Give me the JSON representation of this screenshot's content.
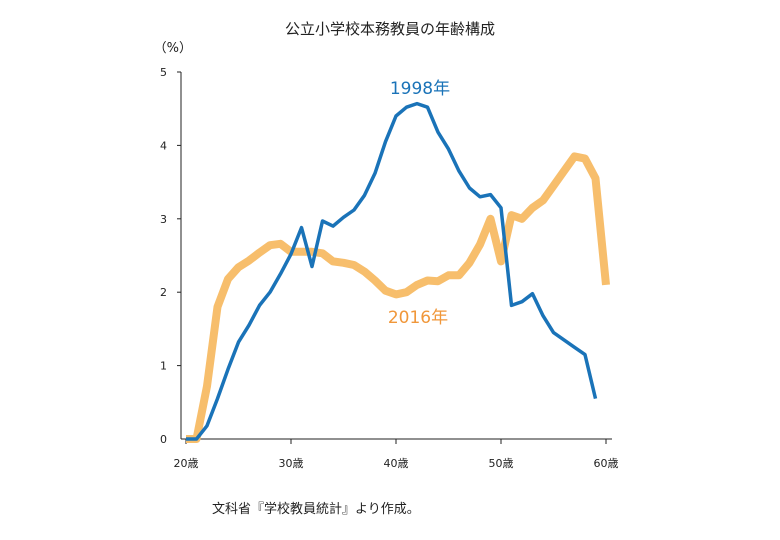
{
  "chart_data": {
    "type": "line",
    "title": "公立小学校本務教員の年齢構成",
    "ylabel": "（%）",
    "xlabel": "",
    "xlim": [
      20,
      60
    ],
    "ylim": [
      0,
      5
    ],
    "yticks": [
      "0",
      "1",
      "2",
      "3",
      "4",
      "5"
    ],
    "xticks": [
      "20歳",
      "30歳",
      "40歳",
      "50歳",
      "60歳"
    ],
    "xtick_values": [
      20,
      30,
      40,
      50,
      60
    ],
    "grid": false,
    "series": [
      {
        "name": "1998年",
        "color": "#1a73b8",
        "x": [
          20,
          21,
          22,
          23,
          24,
          25,
          26,
          27,
          28,
          29,
          30,
          31,
          32,
          33,
          34,
          35,
          36,
          37,
          38,
          39,
          40,
          41,
          42,
          43,
          44,
          45,
          46,
          47,
          48,
          49,
          50,
          51,
          52,
          53,
          54,
          55,
          56,
          57,
          58,
          59,
          60
        ],
        "values": [
          0,
          0,
          0.18,
          0.55,
          0.95,
          1.32,
          1.55,
          1.82,
          2.0,
          2.25,
          2.52,
          2.88,
          2.35,
          2.97,
          2.9,
          3.02,
          3.12,
          3.32,
          3.62,
          4.05,
          4.4,
          4.52,
          4.57,
          4.52,
          4.18,
          3.95,
          3.65,
          3.42,
          3.3,
          3.33,
          3.15,
          1.82,
          1.87,
          1.98,
          1.68,
          1.45,
          1.35,
          1.25,
          1.15,
          0.55,
          null
        ]
      },
      {
        "name": "2016年",
        "color": "#f7be6c",
        "x": [
          20,
          21,
          22,
          23,
          24,
          25,
          26,
          27,
          28,
          29,
          30,
          31,
          32,
          33,
          34,
          35,
          36,
          37,
          38,
          39,
          40,
          41,
          42,
          43,
          44,
          45,
          46,
          47,
          48,
          49,
          50,
          51,
          52,
          53,
          54,
          55,
          56,
          57,
          58,
          59,
          60
        ],
        "values": [
          0,
          0,
          0.72,
          1.8,
          2.18,
          2.34,
          2.43,
          2.54,
          2.64,
          2.66,
          2.55,
          2.55,
          2.55,
          2.53,
          2.42,
          2.4,
          2.37,
          2.28,
          2.16,
          2.02,
          1.97,
          2.0,
          2.1,
          2.16,
          2.15,
          2.23,
          2.23,
          2.4,
          2.65,
          3.0,
          2.42,
          3.05,
          3.0,
          3.15,
          3.25,
          3.45,
          3.65,
          3.85,
          3.82,
          3.55,
          2.1
        ]
      }
    ]
  },
  "source": "文科省『学校教員統計』より作成。"
}
